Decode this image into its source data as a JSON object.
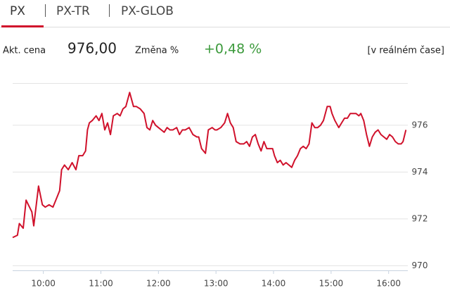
{
  "tabs": [
    "PX",
    "PX-TR",
    "PX-GLOB"
  ],
  "info": {
    "price_label": "Akt. cena",
    "price": "976,00",
    "change_label": "Změna %",
    "change": "+0,48 %",
    "mode": "[v reálném čase]"
  },
  "chart_data": {
    "type": "line",
    "x": [
      568,
      573,
      575,
      579,
      582,
      588,
      590,
      595,
      599,
      602,
      606,
      610,
      613,
      617,
      619,
      622,
      626,
      630,
      634,
      637,
      641,
      644,
      646,
      648,
      651,
      655,
      658,
      661,
      664,
      667,
      670,
      673,
      677,
      680,
      683,
      686,
      690,
      694,
      697,
      701,
      705,
      708,
      711,
      714,
      717,
      720,
      723,
      726,
      729,
      732,
      735,
      739,
      742,
      745,
      748,
      752,
      756,
      760,
      762,
      765,
      769,
      772,
      776,
      779,
      781,
      785,
      789,
      792,
      795,
      798,
      801,
      805,
      809,
      812,
      815,
      818,
      821,
      824,
      827,
      830,
      833,
      836,
      839,
      841,
      844,
      847,
      850,
      853,
      856,
      859,
      862,
      865,
      868,
      871,
      874,
      877,
      880,
      883,
      886,
      889,
      892,
      896,
      899,
      901,
      904,
      908,
      911,
      914,
      917,
      920,
      923,
      926,
      929,
      931,
      934,
      937,
      940,
      943,
      946,
      949,
      952,
      955,
      958,
      961,
      964,
      967,
      970,
      973,
      975,
      978
    ],
    "series": [
      {
        "color": "#d0112b",
        "values": [
          971.2,
          971.3,
          971.8,
          971.6,
          972.8,
          972.3,
          971.7,
          973.4,
          972.6,
          972.5,
          972.6,
          972.5,
          972.8,
          973.2,
          974.1,
          974.3,
          974.1,
          974.4,
          974.1,
          974.7,
          974.7,
          974.9,
          975.8,
          976.1,
          976.2,
          976.4,
          976.2,
          976.5,
          975.8,
          976.1,
          975.6,
          976.4,
          976.5,
          976.4,
          976.7,
          976.8,
          977.4,
          976.8,
          976.8,
          976.7,
          976.5,
          975.9,
          975.8,
          976.2,
          976.0,
          975.9,
          975.8,
          975.7,
          975.9,
          975.8,
          975.8,
          975.9,
          975.6,
          975.8,
          975.8,
          975.9,
          975.6,
          975.5,
          975.5,
          975.0,
          974.8,
          975.8,
          975.9,
          975.8,
          975.8,
          975.9,
          976.1,
          976.5,
          976.1,
          975.9,
          975.3,
          975.2,
          975.2,
          975.3,
          975.1,
          975.5,
          975.6,
          975.2,
          974.9,
          975.3,
          975.0,
          975.0,
          975.0,
          974.7,
          974.4,
          974.5,
          974.3,
          974.4,
          974.3,
          974.2,
          974.5,
          974.7,
          975.0,
          975.1,
          975.0,
          975.2,
          976.1,
          975.9,
          975.9,
          976.0,
          976.2,
          976.8,
          976.8,
          976.5,
          976.2,
          975.9,
          976.1,
          976.3,
          976.3,
          976.5,
          976.5,
          976.5,
          976.4,
          976.5,
          976.2,
          975.6,
          975.1,
          975.5,
          975.7,
          975.8,
          975.6,
          975.5,
          975.4,
          975.6,
          975.5,
          975.3,
          975.2,
          975.2,
          975.3,
          975.8
        ]
      }
    ],
    "xlim": [
      568,
      980
    ],
    "xticks": [
      {
        "value": 600,
        "label": "10:00"
      },
      {
        "value": 660,
        "label": "11:00"
      },
      {
        "value": 720,
        "label": "12:00"
      },
      {
        "value": 780,
        "label": "13:00"
      },
      {
        "value": 840,
        "label": "14:00"
      },
      {
        "value": 900,
        "label": "15:00"
      },
      {
        "value": 960,
        "label": "16:00"
      }
    ],
    "ylim": [
      969.8,
      977.8
    ],
    "yticks": [
      970,
      972,
      974,
      976
    ],
    "grid": true
  }
}
